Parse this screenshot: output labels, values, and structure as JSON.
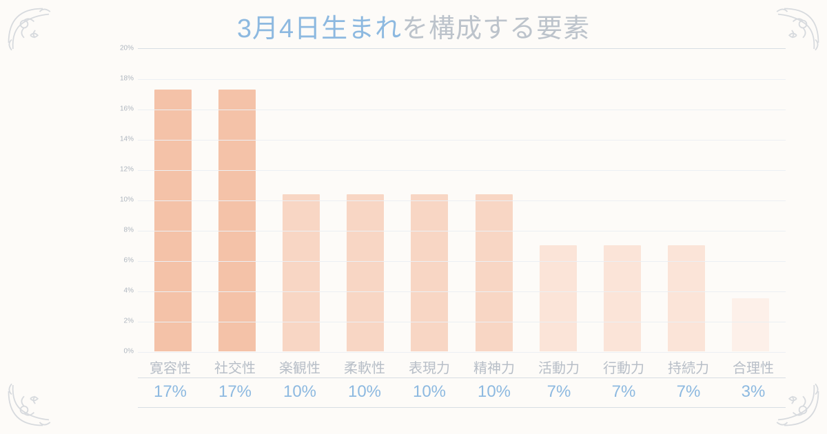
{
  "title": {
    "accent": "3月4日生まれ",
    "rest": "を構成する要素"
  },
  "chart": {
    "type": "bar",
    "ylim": [
      0,
      20
    ],
    "ytick_step": 2,
    "ytick_suffix": "%",
    "categories": [
      "寛容性",
      "社交性",
      "楽観性",
      "柔軟性",
      "表現力",
      "精神力",
      "活動力",
      "行動力",
      "持続力",
      "合理性"
    ],
    "values": [
      17.3,
      17.3,
      10.4,
      10.4,
      10.4,
      10.4,
      7.0,
      7.0,
      7.0,
      3.5
    ],
    "display_percent": [
      "17%",
      "17%",
      "10%",
      "10%",
      "10%",
      "10%",
      "7%",
      "7%",
      "7%",
      "3%"
    ],
    "bar_shade": [
      "strong",
      "strong",
      "mid",
      "mid",
      "mid",
      "mid",
      "low",
      "low",
      "low",
      "faint"
    ],
    "colors": {
      "strong": "#f4c2a8",
      "mid": "#f8d6c4",
      "low": "#fbe4d8",
      "faint": "#fdf0e9",
      "grid": "#eceff3",
      "axis_top": "#d7dde3",
      "ytick_text": "#aeb6bf",
      "category_text": "#b7bec7",
      "percent_text": "#8db9e0",
      "title_accent": "#8db9e0",
      "title_rest": "#bcc3cb",
      "background": "#fdfbf8",
      "ornament": "#b9c0c9"
    },
    "bar_width": 0.58,
    "title_fontsize": 38,
    "category_fontsize": 20,
    "percent_fontsize": 24,
    "ytick_fontsize": 10
  }
}
